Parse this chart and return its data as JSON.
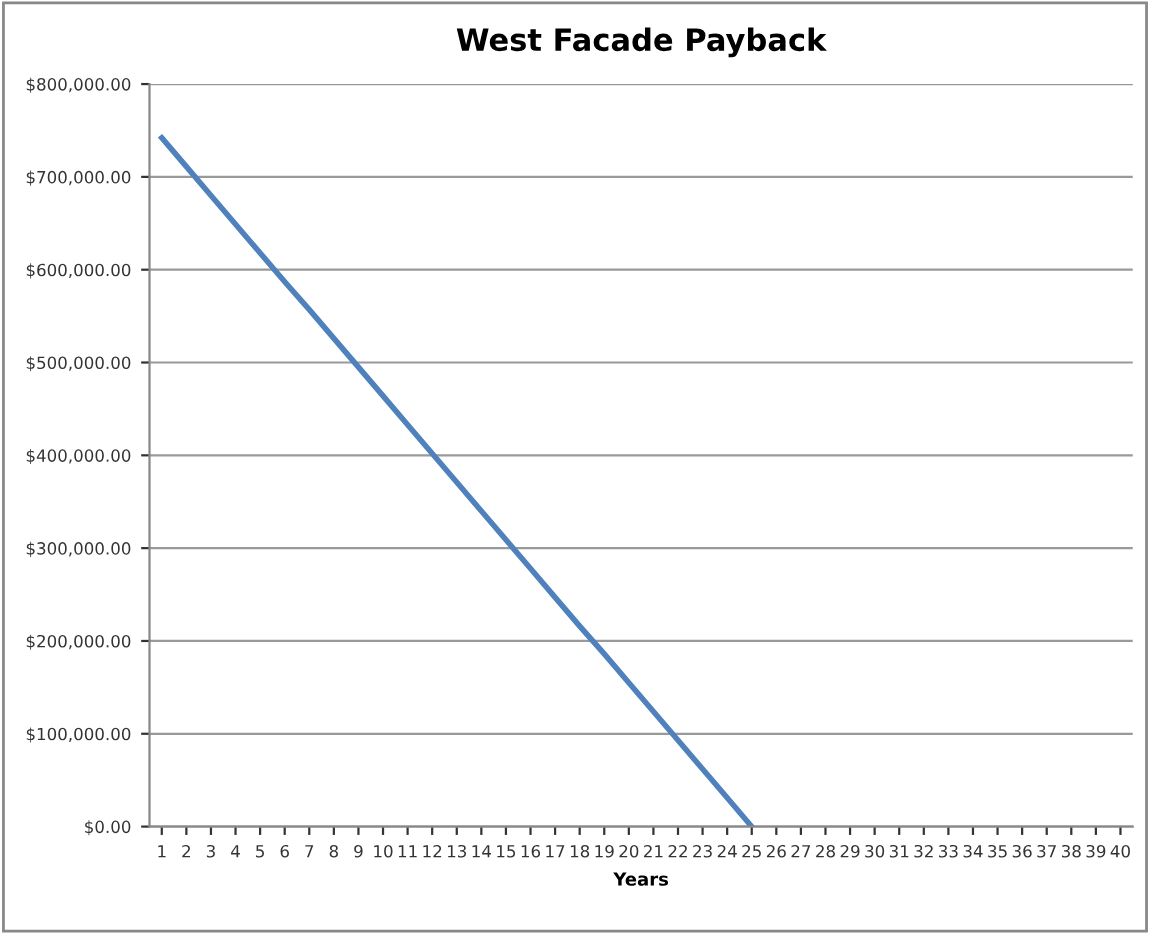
{
  "chart_data": {
    "type": "line",
    "title": "West Facade Payback",
    "xlabel": "Years",
    "categories": [
      "1",
      "2",
      "3",
      "4",
      "5",
      "6",
      "7",
      "8",
      "9",
      "10",
      "11",
      "12",
      "13",
      "14",
      "15",
      "16",
      "17",
      "18",
      "19",
      "20",
      "21",
      "22",
      "23",
      "24",
      "25",
      "26",
      "27",
      "28",
      "29",
      "30",
      "31",
      "32",
      "33",
      "34",
      "35",
      "36",
      "37",
      "38",
      "39",
      "40"
    ],
    "series": [
      {
        "color": "#4f81bd",
        "values": [
          742000,
          711000,
          680000,
          649000,
          618000,
          587000,
          557000,
          526000,
          495000,
          464000,
          433000,
          402000,
          371000,
          340000,
          309000,
          278000,
          247000,
          216000,
          186000,
          155000,
          124000,
          93000,
          62000,
          31000,
          0,
          null,
          null,
          null,
          null,
          null,
          null,
          null,
          null,
          null,
          null,
          null,
          null,
          null,
          null,
          null
        ]
      }
    ],
    "ylim": [
      0,
      800000
    ],
    "yticks": [
      {
        "value": 0,
        "label": "$0.00"
      },
      {
        "value": 100000,
        "label": "$100,000.00"
      },
      {
        "value": 200000,
        "label": "$200,000.00"
      },
      {
        "value": 300000,
        "label": "$300,000.00"
      },
      {
        "value": 400000,
        "label": "$400,000.00"
      },
      {
        "value": 500000,
        "label": "$500,000.00"
      },
      {
        "value": 600000,
        "label": "$600,000.00"
      },
      {
        "value": 700000,
        "label": "$700,000.00"
      },
      {
        "value": 800000,
        "label": "$800,000.00"
      }
    ],
    "grid": "y",
    "legend": false,
    "marker": "none",
    "line_style": "solid"
  }
}
